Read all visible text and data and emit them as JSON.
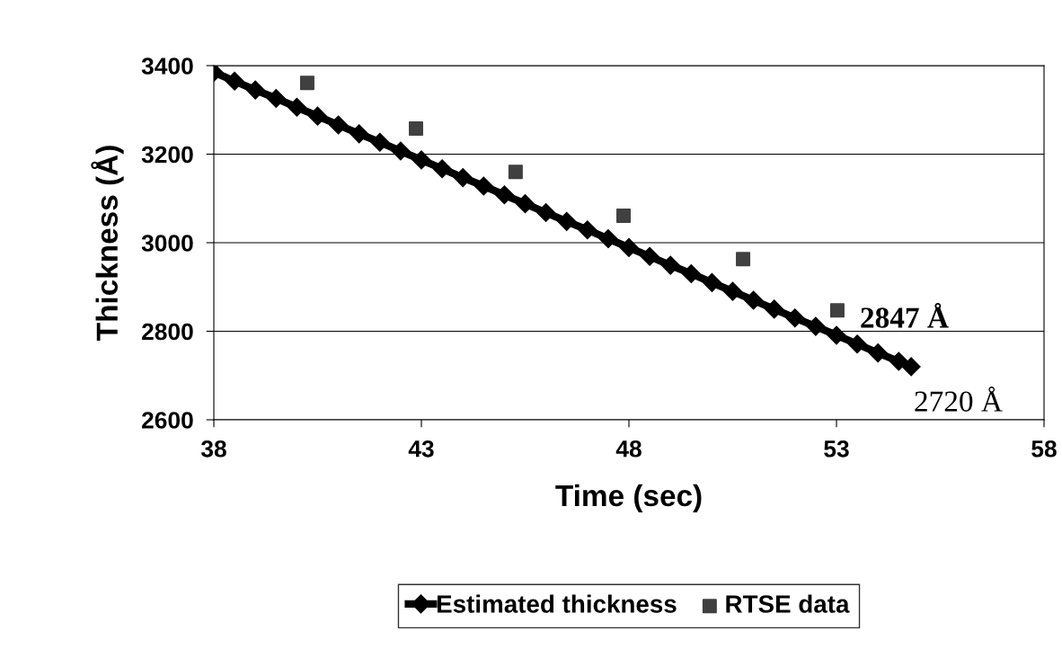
{
  "chart_data": {
    "type": "scatter",
    "xlabel": "Time (sec)",
    "ylabel": "Thickness (Å)",
    "xlim": [
      38,
      58
    ],
    "xticks": [
      38,
      43,
      48,
      53,
      58
    ],
    "ylim": [
      2600,
      3400
    ],
    "yticks": [
      2600,
      2800,
      3000,
      3200,
      3400
    ],
    "grid": "y",
    "legend": "bottom",
    "series": [
      {
        "name": "Estimated thickness",
        "type": "line",
        "marker": "diamond",
        "color": "#000000",
        "x": [
          38,
          38.5,
          39,
          39.5,
          40,
          40.5,
          41,
          41.5,
          42,
          42.5,
          43,
          43.5,
          44,
          44.5,
          45,
          45.5,
          46,
          46.5,
          47,
          47.5,
          48,
          48.5,
          49,
          49.5,
          50,
          50.5,
          51,
          51.5,
          52,
          52.5,
          53,
          53.5,
          54,
          54.5,
          54.8
        ],
        "values": [
          3385,
          3365,
          3345,
          3326,
          3306,
          3286,
          3266,
          3246,
          3227,
          3207,
          3187,
          3167,
          3147,
          3128,
          3108,
          3088,
          3068,
          3048,
          3029,
          3009,
          2989,
          2969,
          2949,
          2930,
          2910,
          2890,
          2870,
          2850,
          2830,
          2811,
          2791,
          2771,
          2751,
          2732,
          2720
        ]
      },
      {
        "name": "RTSE data",
        "marker": "square",
        "color": "#404040",
        "x": [
          40.25,
          42.87,
          45.27,
          47.87,
          50.75,
          53.02
        ],
        "values": [
          3361,
          3258,
          3160,
          3061,
          2963,
          2847
        ]
      }
    ],
    "annotations": [
      {
        "text": "2847 Å",
        "x": 53.02,
        "y": 2847
      },
      {
        "text": "2720 Å",
        "x": 54.8,
        "y": 2720
      }
    ]
  }
}
